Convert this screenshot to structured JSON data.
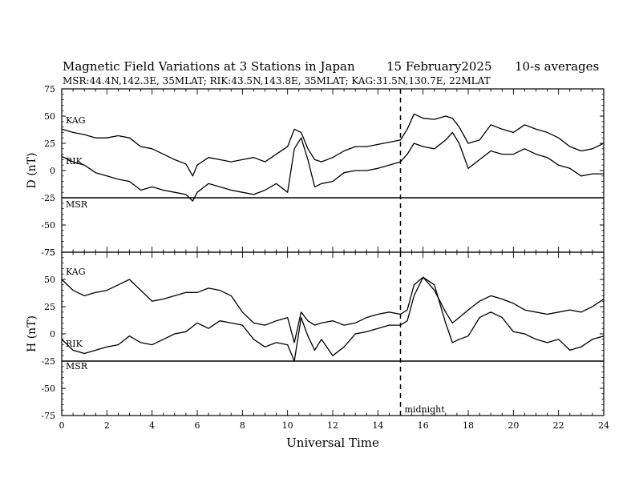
{
  "header": {
    "title": "Magnetic Field Variations at 3 Stations in Japan",
    "date": "15 February2025",
    "averaging": "10-s averages",
    "stations_line": "MSR:44.4N,142.3E, 35MLAT;  RIK:43.5N,143.8E, 35MLAT;  KAG:31.5N,130.7E, 22MLAT"
  },
  "chart_data": [
    {
      "type": "line",
      "panel": "top",
      "ylabel": "D (nT)",
      "ylim": [
        -75,
        75
      ],
      "yticks": [
        75,
        50,
        25,
        0,
        -25,
        -50,
        -75
      ],
      "xlim": [
        0,
        24
      ],
      "station_labels": [
        "KAG",
        "RIK",
        "MSR"
      ],
      "series": [
        {
          "name": "KAG",
          "x": [
            0,
            0.5,
            1,
            1.5,
            2,
            2.5,
            3,
            3.5,
            4,
            4.5,
            5,
            5.5,
            5.8,
            6,
            6.5,
            7,
            7.5,
            8,
            8.5,
            9,
            9.5,
            10,
            10.3,
            10.6,
            10.9,
            11.2,
            11.5,
            12,
            12.5,
            13,
            13.5,
            14,
            14.5,
            15,
            15.3,
            15.6,
            16,
            16.5,
            17,
            17.3,
            17.6,
            18,
            18.5,
            19,
            19.5,
            20,
            20.5,
            21,
            21.5,
            22,
            22.5,
            23,
            23.5,
            24
          ],
          "y": [
            38,
            35,
            33,
            30,
            30,
            32,
            30,
            22,
            20,
            15,
            10,
            6,
            -5,
            5,
            12,
            10,
            8,
            10,
            12,
            8,
            15,
            22,
            38,
            35,
            20,
            10,
            8,
            12,
            18,
            22,
            22,
            24,
            26,
            28,
            38,
            52,
            48,
            47,
            50,
            48,
            40,
            25,
            28,
            42,
            38,
            35,
            42,
            38,
            35,
            30,
            22,
            18,
            20,
            25
          ]
        },
        {
          "name": "RIK",
          "x": [
            0,
            0.5,
            1,
            1.5,
            2,
            2.5,
            3,
            3.5,
            4,
            4.5,
            5,
            5.5,
            5.8,
            6,
            6.5,
            7,
            7.5,
            8,
            8.5,
            9,
            9.5,
            10,
            10.3,
            10.6,
            10.9,
            11.2,
            11.5,
            12,
            12.5,
            13,
            13.5,
            14,
            14.5,
            15,
            15.3,
            15.6,
            16,
            16.5,
            17,
            17.3,
            17.6,
            18,
            18.5,
            19,
            19.5,
            20,
            20.5,
            21,
            21.5,
            22,
            22.5,
            23,
            23.5,
            24
          ],
          "y": [
            13,
            8,
            5,
            -2,
            -5,
            -8,
            -10,
            -18,
            -15,
            -18,
            -20,
            -22,
            -28,
            -20,
            -12,
            -15,
            -18,
            -20,
            -22,
            -18,
            -12,
            -20,
            20,
            30,
            10,
            -15,
            -12,
            -10,
            -2,
            0,
            0,
            2,
            5,
            8,
            15,
            25,
            22,
            20,
            28,
            35,
            25,
            2,
            10,
            18,
            15,
            15,
            20,
            15,
            12,
            5,
            2,
            -5,
            -3,
            -3
          ]
        }
      ]
    },
    {
      "type": "line",
      "panel": "bottom",
      "ylabel": "H (nT)",
      "ylim": [
        -75,
        75
      ],
      "yticks": [
        75,
        50,
        25,
        0,
        -25,
        -50,
        -75
      ],
      "xlim": [
        0,
        24
      ],
      "xticks": [
        0,
        2,
        4,
        6,
        8,
        10,
        12,
        14,
        16,
        18,
        20,
        22,
        24
      ],
      "xlabel": "Universal Time",
      "annotation": "midnight",
      "annotation_x": 15,
      "station_labels": [
        "KAG",
        "RIK",
        "MSR"
      ],
      "series": [
        {
          "name": "KAG",
          "x": [
            0,
            0.5,
            1,
            1.5,
            2,
            2.5,
            3,
            3.5,
            4,
            4.5,
            5,
            5.5,
            6,
            6.5,
            7,
            7.5,
            8,
            8.5,
            9,
            9.5,
            10,
            10.3,
            10.6,
            10.9,
            11.2,
            11.5,
            12,
            12.5,
            13,
            13.5,
            14,
            14.5,
            15,
            15.3,
            15.6,
            16,
            16.5,
            17,
            17.3,
            17.6,
            18,
            18.5,
            19,
            19.5,
            20,
            20.5,
            21,
            21.5,
            22,
            22.5,
            23,
            23.5,
            24
          ],
          "y": [
            50,
            40,
            35,
            38,
            40,
            45,
            50,
            40,
            30,
            32,
            35,
            38,
            38,
            42,
            40,
            35,
            20,
            10,
            8,
            12,
            15,
            -8,
            20,
            12,
            8,
            10,
            12,
            8,
            10,
            15,
            18,
            20,
            18,
            22,
            45,
            52,
            40,
            20,
            10,
            15,
            22,
            30,
            35,
            32,
            28,
            22,
            20,
            18,
            20,
            22,
            20,
            25,
            32
          ]
        },
        {
          "name": "RIK",
          "x": [
            0,
            0.5,
            1,
            1.5,
            2,
            2.5,
            3,
            3.5,
            4,
            4.5,
            5,
            5.5,
            6,
            6.5,
            7,
            7.5,
            8,
            8.5,
            9,
            9.5,
            10,
            10.3,
            10.6,
            10.9,
            11.2,
            11.5,
            12,
            12.5,
            13,
            13.5,
            14,
            14.5,
            15,
            15.3,
            15.6,
            16,
            16.5,
            17,
            17.3,
            17.6,
            18,
            18.5,
            19,
            19.5,
            20,
            20.5,
            21,
            21.5,
            22,
            22.5,
            23,
            23.5,
            24
          ],
          "y": [
            -5,
            -15,
            -18,
            -15,
            -12,
            -10,
            -2,
            -8,
            -10,
            -5,
            0,
            2,
            10,
            5,
            12,
            10,
            8,
            -5,
            -12,
            -8,
            -10,
            -25,
            15,
            -2,
            -15,
            -5,
            -20,
            -12,
            0,
            2,
            5,
            8,
            8,
            12,
            35,
            52,
            45,
            10,
            -8,
            -5,
            -2,
            15,
            20,
            15,
            2,
            0,
            -5,
            -8,
            -5,
            -15,
            -12,
            -5,
            -2
          ]
        }
      ]
    }
  ]
}
